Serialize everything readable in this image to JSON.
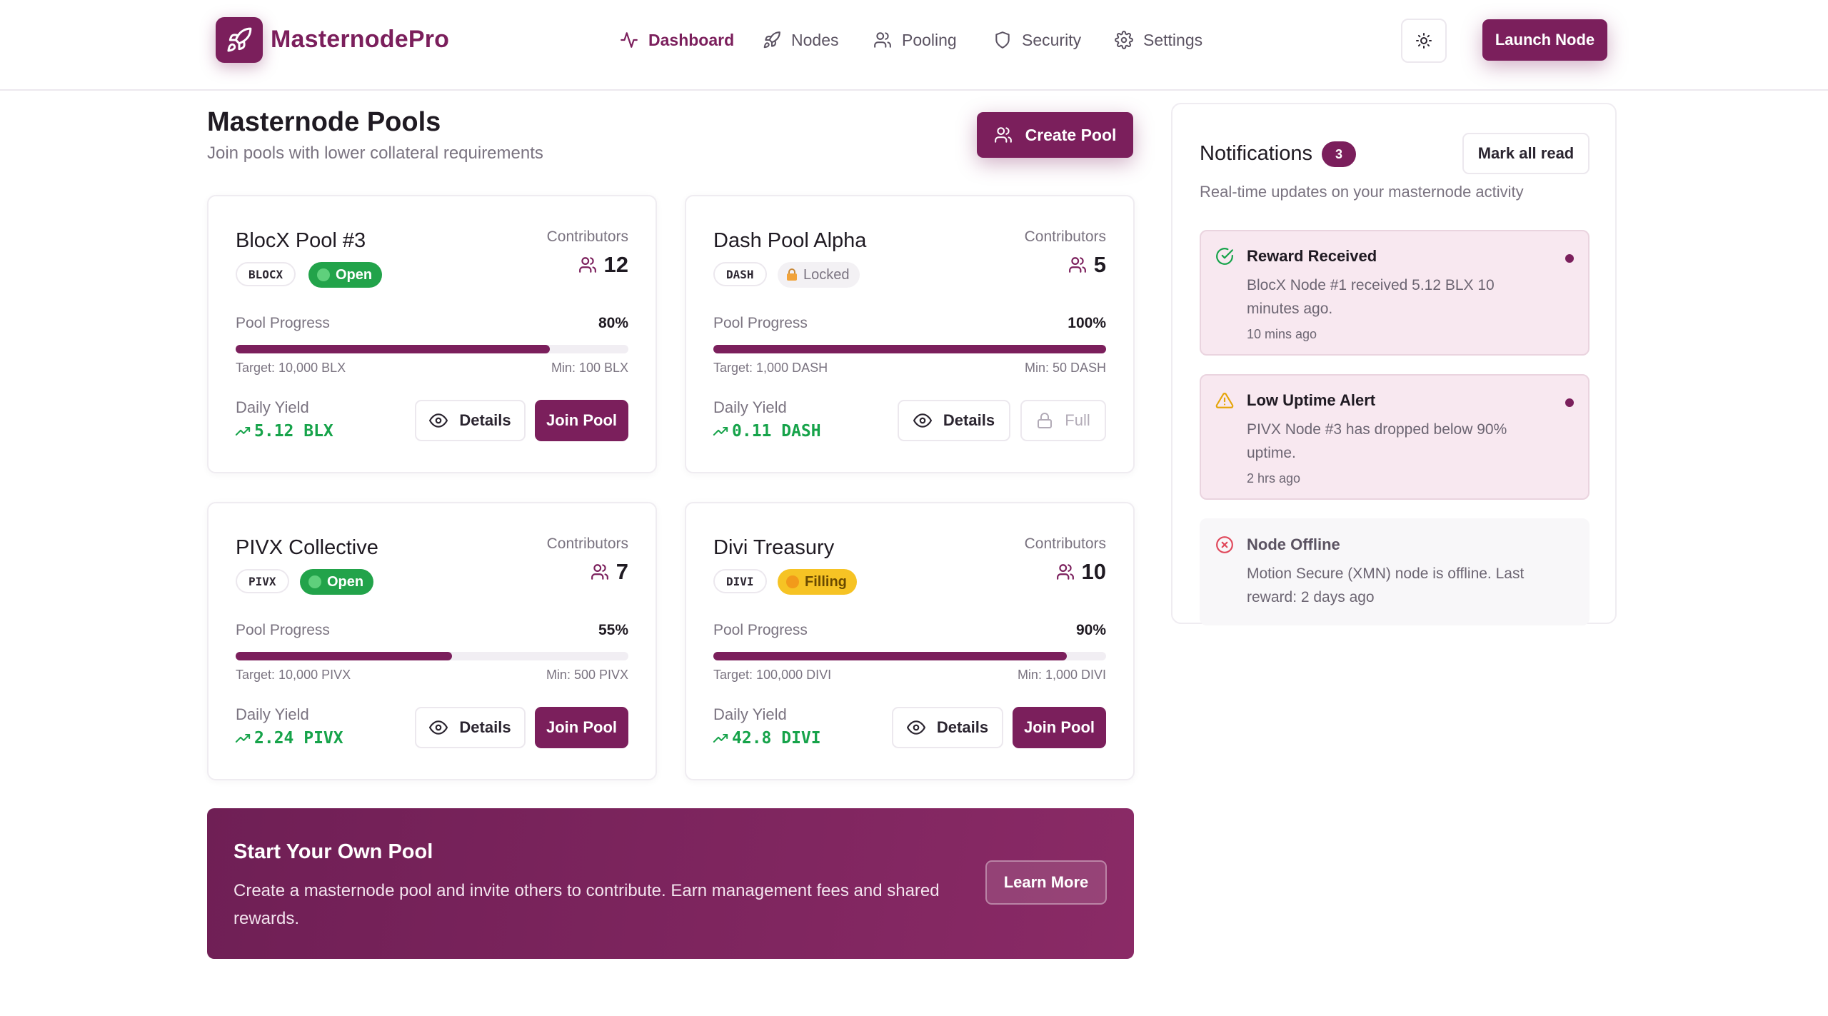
{
  "brand": {
    "name": "MasternodePro",
    "icon": "rocket-icon"
  },
  "nav": [
    {
      "label": "Dashboard",
      "icon": "activity-icon",
      "active": true
    },
    {
      "label": "Nodes",
      "icon": "rocket-icon"
    },
    {
      "label": "Pooling",
      "icon": "users-icon"
    },
    {
      "label": "Security",
      "icon": "shield-icon"
    },
    {
      "label": "Settings",
      "icon": "gear-icon"
    }
  ],
  "header": {
    "theme_icon": "sun-icon",
    "launch_label": "Launch Node"
  },
  "page": {
    "title": "Masternode Pools",
    "subtitle": "Join pools with lower collateral requirements",
    "create_label": "Create Pool"
  },
  "pools": [
    {
      "name": "BlocX Pool #3",
      "ticker": "BLOCX",
      "status": "Open",
      "contributors_label": "Contributors",
      "contributors": "12",
      "progress_label": "Pool Progress",
      "progress_pct": "80%",
      "progress": 0.8,
      "target": "Target: 10,000 BLX",
      "min": "Min: 100 BLX",
      "yield_label": "Daily Yield",
      "yield": "5.12 BLX",
      "details_label": "Details",
      "action_label": "Join Pool"
    },
    {
      "name": "Dash Pool Alpha",
      "ticker": "DASH",
      "status": "Locked",
      "contributors_label": "Contributors",
      "contributors": "5",
      "progress_label": "Pool Progress",
      "progress_pct": "100%",
      "progress": 1.0,
      "target": "Target: 1,000 DASH",
      "min": "Min: 50 DASH",
      "yield_label": "Daily Yield",
      "yield": "0.11 DASH",
      "details_label": "Details",
      "action_label": "Full"
    },
    {
      "name": "PIVX Collective",
      "ticker": "PIVX",
      "status": "Open",
      "contributors_label": "Contributors",
      "contributors": "7",
      "progress_label": "Pool Progress",
      "progress_pct": "55%",
      "progress": 0.55,
      "target": "Target: 10,000 PIVX",
      "min": "Min: 500 PIVX",
      "yield_label": "Daily Yield",
      "yield": "2.24 PIVX",
      "details_label": "Details",
      "action_label": "Join Pool"
    },
    {
      "name": "Divi Treasury",
      "ticker": "DIVI",
      "status": "Filling",
      "contributors_label": "Contributors",
      "contributors": "10",
      "progress_label": "Pool Progress",
      "progress_pct": "90%",
      "progress": 0.9,
      "target": "Target: 100,000 DIVI",
      "min": "Min: 1,000 DIVI",
      "yield_label": "Daily Yield",
      "yield": "42.8 DIVI",
      "details_label": "Details",
      "action_label": "Join Pool"
    }
  ],
  "banner": {
    "title": "Start Your Own Pool",
    "text": "Create a masternode pool and invite others to contribute. Earn management fees and shared rewards.",
    "button": "Learn More"
  },
  "notifications": {
    "title": "Notifications",
    "count": "3",
    "mark_all": "Mark all read",
    "subtitle": "Real-time updates on your masternode activity",
    "items": [
      {
        "title": "Reward Received",
        "body": "BlocX Node #1 received 5.12 BLX 10 minutes ago.",
        "time": "10 mins ago",
        "icon": "check-circle-icon",
        "unread": true
      },
      {
        "title": "Low Uptime Alert",
        "body": "PIVX Node #3 has dropped below 90% uptime.",
        "time": "2 hrs ago",
        "icon": "warning-icon",
        "unread": true
      },
      {
        "title": "Node Offline",
        "body": "Motion Secure (XMN) node is offline. Last reward: 2 days ago",
        "time": "",
        "icon": "x-circle-icon",
        "unread": false
      }
    ]
  },
  "colors": {
    "primary": "#7b1f5c",
    "success": "#16a34a",
    "warning": "#f6c324",
    "danger": "#e0475a"
  }
}
